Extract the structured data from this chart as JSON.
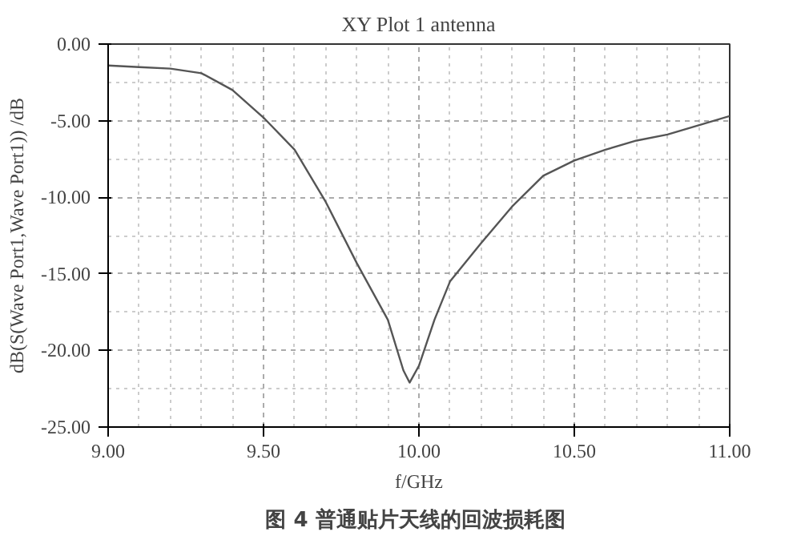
{
  "chart_data": {
    "type": "line",
    "title": "XY Plot 1 antenna",
    "xlabel": "f/GHz",
    "ylabel": "dB(S(Wave Port1,Wave Port1)) /dB",
    "annotations": [
      "图 4  普通贴片天线的回波损耗图"
    ],
    "x": [
      9.0,
      9.1,
      9.2,
      9.3,
      9.4,
      9.5,
      9.6,
      9.7,
      9.8,
      9.9,
      9.95,
      9.97,
      10.0,
      10.05,
      10.1,
      10.2,
      10.3,
      10.4,
      10.5,
      10.6,
      10.7,
      10.8,
      10.9,
      11.0
    ],
    "series": [
      {
        "color": "#555555",
        "values": [
          -1.4,
          -1.5,
          -1.6,
          -1.9,
          -3.0,
          -4.8,
          -6.9,
          -10.3,
          -14.3,
          -18.0,
          -21.3,
          -22.1,
          -21.0,
          -18.0,
          -15.5,
          -13.0,
          -10.6,
          -8.6,
          -7.6,
          -6.9,
          -6.3,
          -5.9,
          -5.3,
          -4.7
        ]
      }
    ],
    "xlim": [
      9.0,
      11.0
    ],
    "ylim": [
      -25.0,
      0.0
    ],
    "xticks": [
      {
        "value": 9.0,
        "label": "9.00"
      },
      {
        "value": 9.5,
        "label": "9.50"
      },
      {
        "value": 10.0,
        "label": "10.00"
      },
      {
        "value": 10.5,
        "label": "10.50"
      },
      {
        "value": 11.0,
        "label": "11.00"
      }
    ],
    "yticks": [
      {
        "value": -25,
        "label": "-25.00"
      },
      {
        "value": -20,
        "label": "-20.00"
      },
      {
        "value": -15,
        "label": "-15.00"
      },
      {
        "value": -10,
        "label": "-10.00"
      },
      {
        "value": -5,
        "label": "-5.00"
      },
      {
        "value": 0,
        "label": "0.00"
      }
    ],
    "grid": true,
    "marker": "none",
    "line_style": "solid"
  }
}
